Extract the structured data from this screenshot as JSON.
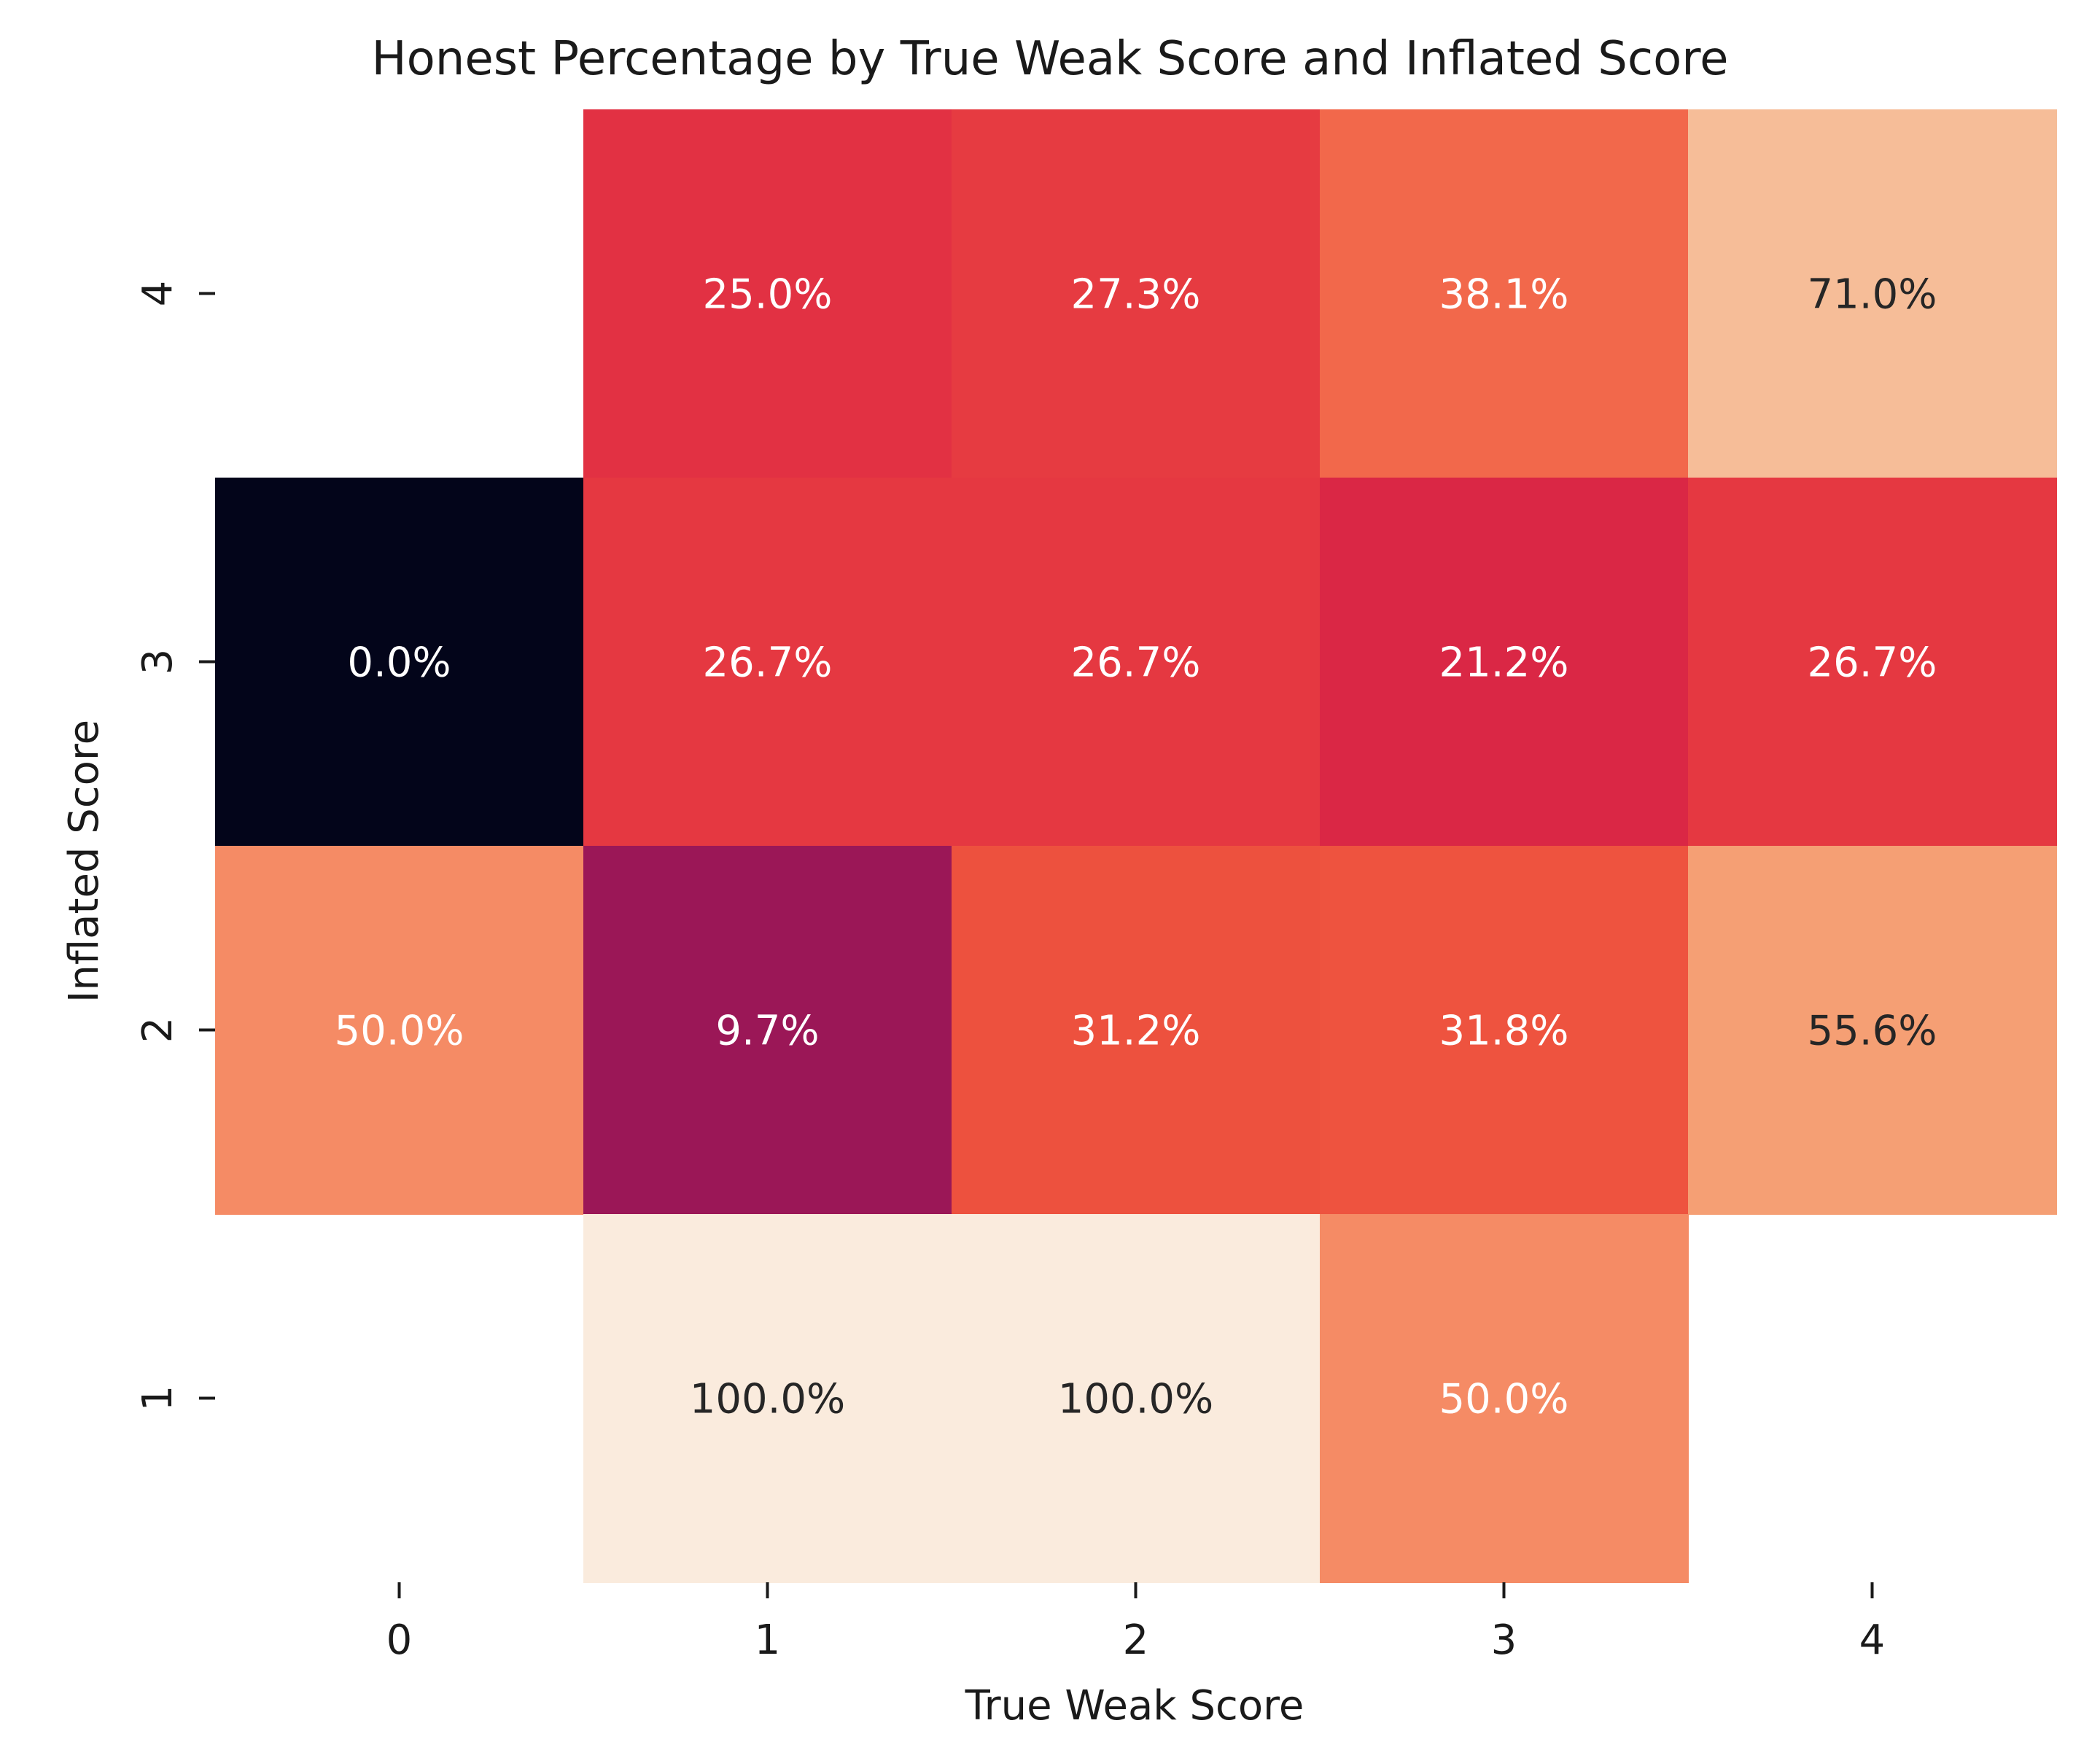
{
  "chart_data": {
    "type": "heatmap",
    "title": "Honest Percentage by True Weak Score and Inflated Score",
    "xlabel": "True Weak Score",
    "ylabel": "Inflated Score",
    "x_categories": [
      "0",
      "1",
      "2",
      "3",
      "4"
    ],
    "y_categories": [
      "4",
      "3",
      "2",
      "1"
    ],
    "values": [
      [
        null,
        25.0,
        27.3,
        38.1,
        71.0
      ],
      [
        0.0,
        26.7,
        26.7,
        21.2,
        26.7
      ],
      [
        50.0,
        9.7,
        31.2,
        31.8,
        55.6
      ],
      [
        null,
        100.0,
        100.0,
        50.0,
        null
      ]
    ],
    "labels": [
      [
        "",
        "25.0%",
        "27.3%",
        "38.1%",
        "71.0%"
      ],
      [
        "0.0%",
        "26.7%",
        "26.7%",
        "21.2%",
        "26.7%"
      ],
      [
        "50.0%",
        "9.7%",
        "31.2%",
        "31.8%",
        "55.6%"
      ],
      [
        "",
        "100.0%",
        "100.0%",
        "50.0%",
        ""
      ]
    ],
    "colormap": "rocket",
    "vmin": 0,
    "vmax": 100,
    "colorbar": false,
    "grid": false
  }
}
